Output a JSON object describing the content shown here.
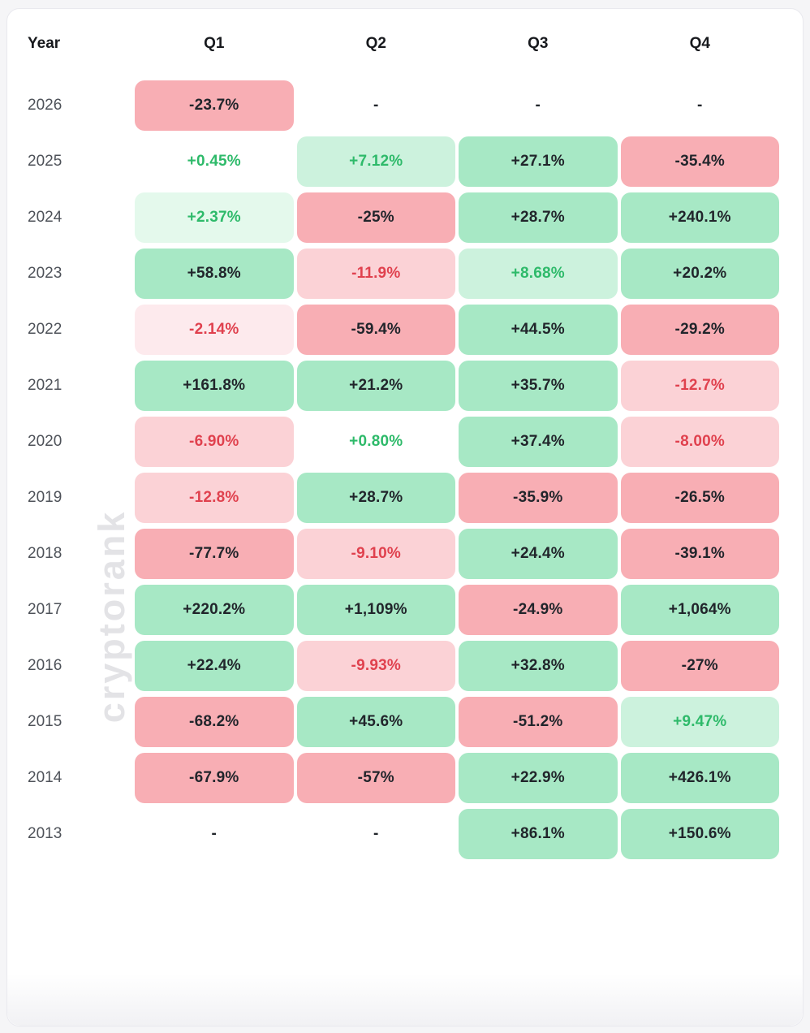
{
  "watermark": {
    "text": "cryptorank"
  },
  "palette": {
    "green3": "#a7e8c5",
    "green2": "#ccf2dd",
    "green1": "#e4f9ec",
    "red3": "#f8aeb4",
    "red2": "#fbd2d6",
    "red1": "#fdeaed",
    "none": "transparent",
    "dark": "#21252b",
    "green": "#2eba6a",
    "red": "#e0414e"
  },
  "table": {
    "headers": {
      "year": "Year",
      "q1": "Q1",
      "q2": "Q2",
      "q3": "Q3",
      "q4": "Q4"
    },
    "rows": [
      {
        "year": "2026",
        "cells": [
          {
            "v": "-23.7%",
            "bg": "red3",
            "fg": "dark"
          },
          {
            "v": "-",
            "bg": "none",
            "fg": "dark"
          },
          {
            "v": "-",
            "bg": "none",
            "fg": "dark"
          },
          {
            "v": "-",
            "bg": "none",
            "fg": "dark"
          }
        ]
      },
      {
        "year": "2025",
        "cells": [
          {
            "v": "+0.45%",
            "bg": "none",
            "fg": "green"
          },
          {
            "v": "+7.12%",
            "bg": "green2",
            "fg": "green"
          },
          {
            "v": "+27.1%",
            "bg": "green3",
            "fg": "dark"
          },
          {
            "v": "-35.4%",
            "bg": "red3",
            "fg": "dark"
          }
        ]
      },
      {
        "year": "2024",
        "cells": [
          {
            "v": "+2.37%",
            "bg": "green1",
            "fg": "green"
          },
          {
            "v": "-25%",
            "bg": "red3",
            "fg": "dark"
          },
          {
            "v": "+28.7%",
            "bg": "green3",
            "fg": "dark"
          },
          {
            "v": "+240.1%",
            "bg": "green3",
            "fg": "dark"
          }
        ]
      },
      {
        "year": "2023",
        "cells": [
          {
            "v": "+58.8%",
            "bg": "green3",
            "fg": "dark"
          },
          {
            "v": "-11.9%",
            "bg": "red2",
            "fg": "red"
          },
          {
            "v": "+8.68%",
            "bg": "green2",
            "fg": "green"
          },
          {
            "v": "+20.2%",
            "bg": "green3",
            "fg": "dark"
          }
        ]
      },
      {
        "year": "2022",
        "cells": [
          {
            "v": "-2.14%",
            "bg": "red1",
            "fg": "red"
          },
          {
            "v": "-59.4%",
            "bg": "red3",
            "fg": "dark"
          },
          {
            "v": "+44.5%",
            "bg": "green3",
            "fg": "dark"
          },
          {
            "v": "-29.2%",
            "bg": "red3",
            "fg": "dark"
          }
        ]
      },
      {
        "year": "2021",
        "cells": [
          {
            "v": "+161.8%",
            "bg": "green3",
            "fg": "dark"
          },
          {
            "v": "+21.2%",
            "bg": "green3",
            "fg": "dark"
          },
          {
            "v": "+35.7%",
            "bg": "green3",
            "fg": "dark"
          },
          {
            "v": "-12.7%",
            "bg": "red2",
            "fg": "red"
          }
        ]
      },
      {
        "year": "2020",
        "cells": [
          {
            "v": "-6.90%",
            "bg": "red2",
            "fg": "red"
          },
          {
            "v": "+0.80%",
            "bg": "none",
            "fg": "green"
          },
          {
            "v": "+37.4%",
            "bg": "green3",
            "fg": "dark"
          },
          {
            "v": "-8.00%",
            "bg": "red2",
            "fg": "red"
          }
        ]
      },
      {
        "year": "2019",
        "cells": [
          {
            "v": "-12.8%",
            "bg": "red2",
            "fg": "red"
          },
          {
            "v": "+28.7%",
            "bg": "green3",
            "fg": "dark"
          },
          {
            "v": "-35.9%",
            "bg": "red3",
            "fg": "dark"
          },
          {
            "v": "-26.5%",
            "bg": "red3",
            "fg": "dark"
          }
        ]
      },
      {
        "year": "2018",
        "cells": [
          {
            "v": "-77.7%",
            "bg": "red3",
            "fg": "dark"
          },
          {
            "v": "-9.10%",
            "bg": "red2",
            "fg": "red"
          },
          {
            "v": "+24.4%",
            "bg": "green3",
            "fg": "dark"
          },
          {
            "v": "-39.1%",
            "bg": "red3",
            "fg": "dark"
          }
        ]
      },
      {
        "year": "2017",
        "cells": [
          {
            "v": "+220.2%",
            "bg": "green3",
            "fg": "dark"
          },
          {
            "v": "+1,109%",
            "bg": "green3",
            "fg": "dark"
          },
          {
            "v": "-24.9%",
            "bg": "red3",
            "fg": "dark"
          },
          {
            "v": "+1,064%",
            "bg": "green3",
            "fg": "dark"
          }
        ]
      },
      {
        "year": "2016",
        "cells": [
          {
            "v": "+22.4%",
            "bg": "green3",
            "fg": "dark"
          },
          {
            "v": "-9.93%",
            "bg": "red2",
            "fg": "red"
          },
          {
            "v": "+32.8%",
            "bg": "green3",
            "fg": "dark"
          },
          {
            "v": "-27%",
            "bg": "red3",
            "fg": "dark"
          }
        ]
      },
      {
        "year": "2015",
        "cells": [
          {
            "v": "-68.2%",
            "bg": "red3",
            "fg": "dark"
          },
          {
            "v": "+45.6%",
            "bg": "green3",
            "fg": "dark"
          },
          {
            "v": "-51.2%",
            "bg": "red3",
            "fg": "dark"
          },
          {
            "v": "+9.47%",
            "bg": "green2",
            "fg": "green"
          }
        ]
      },
      {
        "year": "2014",
        "cells": [
          {
            "v": "-67.9%",
            "bg": "red3",
            "fg": "dark"
          },
          {
            "v": "-57%",
            "bg": "red3",
            "fg": "dark"
          },
          {
            "v": "+22.9%",
            "bg": "green3",
            "fg": "dark"
          },
          {
            "v": "+426.1%",
            "bg": "green3",
            "fg": "dark"
          }
        ]
      },
      {
        "year": "2013",
        "cells": [
          {
            "v": "-",
            "bg": "none",
            "fg": "dark"
          },
          {
            "v": "-",
            "bg": "none",
            "fg": "dark"
          },
          {
            "v": "+86.1%",
            "bg": "green3",
            "fg": "dark"
          },
          {
            "v": "+150.6%",
            "bg": "green3",
            "fg": "dark"
          }
        ]
      }
    ]
  },
  "chart_data": {
    "type": "heatmap",
    "title": "",
    "columns": [
      "Q1",
      "Q2",
      "Q3",
      "Q4"
    ],
    "rows": [
      "2026",
      "2025",
      "2024",
      "2023",
      "2022",
      "2021",
      "2020",
      "2019",
      "2018",
      "2017",
      "2016",
      "2015",
      "2014",
      "2013"
    ],
    "unit": "%",
    "values": [
      [
        -23.7,
        null,
        null,
        null
      ],
      [
        0.45,
        7.12,
        27.1,
        -35.4
      ],
      [
        2.37,
        -25,
        28.7,
        240.1
      ],
      [
        58.8,
        -11.9,
        8.68,
        20.2
      ],
      [
        -2.14,
        -59.4,
        44.5,
        -29.2
      ],
      [
        161.8,
        21.2,
        35.7,
        -12.7
      ],
      [
        -6.9,
        0.8,
        37.4,
        -8.0
      ],
      [
        -12.8,
        28.7,
        -35.9,
        -26.5
      ],
      [
        -77.7,
        -9.1,
        24.4,
        -39.1
      ],
      [
        220.2,
        1109,
        -24.9,
        1064
      ],
      [
        22.4,
        -9.93,
        32.8,
        -27
      ],
      [
        -68.2,
        45.6,
        -51.2,
        9.47
      ],
      [
        -67.9,
        -57,
        22.9,
        426.1
      ],
      [
        null,
        null,
        86.1,
        150.6
      ]
    ],
    "legend_position": "none",
    "grid": false,
    "color_rule": "green = positive return, red = negative return; background intensity scales with magnitude; small magnitudes use colored text on pale/no background"
  }
}
